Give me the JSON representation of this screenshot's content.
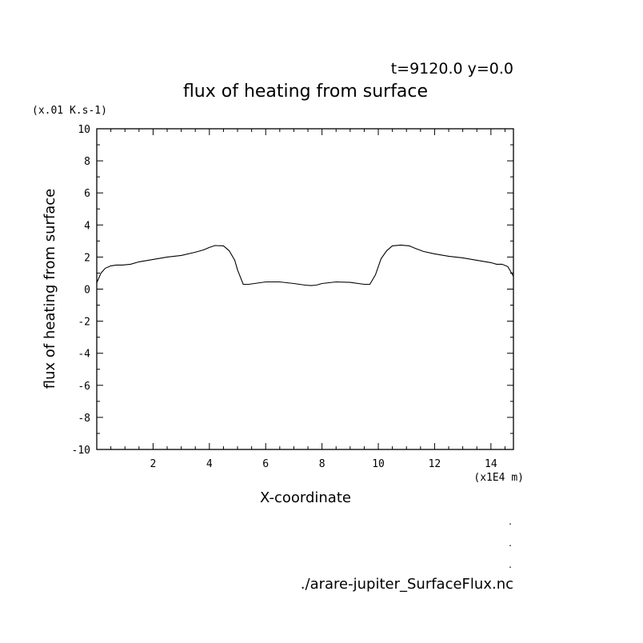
{
  "chart_data": {
    "type": "line",
    "time_label": "t=9120.0 y=0.0",
    "title": "flux of heating from surface",
    "ylabel": "flux of heating from surface",
    "yunit": "(x.01 K.s-1)",
    "xlabel": "X-coordinate",
    "xunit": "(x1E4 m)",
    "xlim": [
      0,
      14.8
    ],
    "ylim": [
      -10,
      10
    ],
    "x_ticks": [
      2,
      4,
      6,
      8,
      10,
      12,
      14
    ],
    "y_ticks": [
      -10,
      -8,
      -6,
      -4,
      -2,
      0,
      2,
      4,
      6,
      8,
      10
    ],
    "series": [
      {
        "x": [
          0.0,
          0.15,
          0.3,
          0.5,
          0.7,
          0.9,
          1.2,
          1.5,
          2.0,
          2.5,
          3.0,
          3.5,
          3.8,
          4.0,
          4.2,
          4.5,
          4.7,
          4.9,
          5.0,
          5.2,
          5.4,
          5.6,
          6.0,
          6.5,
          7.0,
          7.4,
          7.6,
          7.8,
          8.0,
          8.5,
          9.0,
          9.5,
          9.7,
          9.9,
          10.1,
          10.3,
          10.5,
          10.8,
          11.1,
          11.3,
          11.6,
          12.0,
          12.5,
          13.0,
          13.5,
          14.0,
          14.2,
          14.4,
          14.6,
          14.8
        ],
        "y": [
          0.4,
          1.0,
          1.3,
          1.45,
          1.5,
          1.5,
          1.55,
          1.7,
          1.85,
          2.0,
          2.1,
          2.3,
          2.45,
          2.6,
          2.72,
          2.7,
          2.4,
          1.8,
          1.2,
          0.3,
          0.3,
          0.35,
          0.45,
          0.45,
          0.35,
          0.25,
          0.22,
          0.25,
          0.35,
          0.45,
          0.42,
          0.3,
          0.3,
          0.9,
          1.9,
          2.4,
          2.7,
          2.75,
          2.7,
          2.55,
          2.35,
          2.2,
          2.05,
          1.95,
          1.8,
          1.65,
          1.55,
          1.55,
          1.4,
          0.8
        ]
      }
    ]
  },
  "footer": {
    "filename": "./arare-jupiter_SurfaceFlux.nc",
    "dots": [
      ".",
      ".",
      "."
    ]
  }
}
